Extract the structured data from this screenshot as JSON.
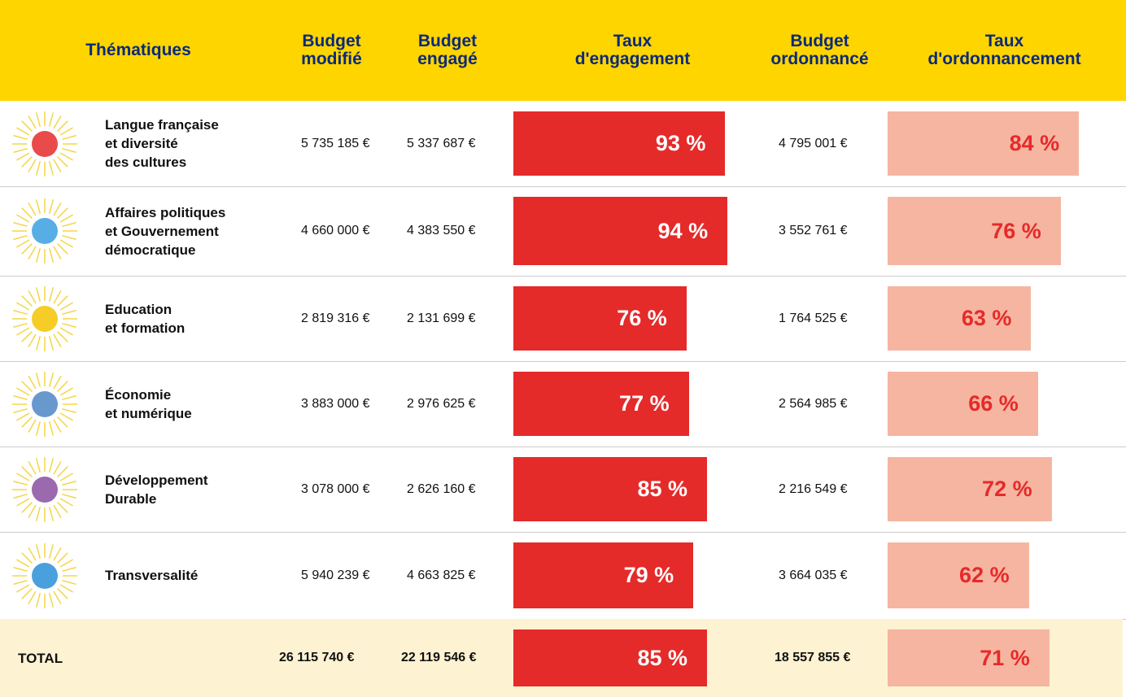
{
  "header": {
    "columns": [
      "Thématiques",
      "Budget\nmodifié",
      "Budget\nengagé",
      "Taux\nd'engagement",
      "Budget\nordonnancé",
      "Taux\nd'ordonnancement"
    ]
  },
  "table": {
    "rows": [
      {
        "theme": "Langue française\net diversité\ndes cultures",
        "budget_modifie": "5 735 185 €",
        "budget_engage": "5 337 687 €",
        "taux_engagement": {
          "value": 93,
          "label": "93 %"
        },
        "budget_ordonnance": "4 795 001 €",
        "taux_ordonnancement": {
          "value": 84,
          "label": "84 %"
        }
      },
      {
        "theme": "Affaires politiques\net Gouvernement\ndémocratique",
        "budget_modifie": "4 660 000 €",
        "budget_engage": "4 383 550 €",
        "taux_engagement": {
          "value": 94,
          "label": "94 %"
        },
        "budget_ordonnance": "3 552 761 €",
        "taux_ordonnancement": {
          "value": 76,
          "label": "76 %"
        }
      },
      {
        "theme": "Education\net formation",
        "budget_modifie": "2 819 316 €",
        "budget_engage": "2 131 699 €",
        "taux_engagement": {
          "value": 76,
          "label": "76 %"
        },
        "budget_ordonnance": "1 764 525 €",
        "taux_ordonnancement": {
          "value": 63,
          "label": "63 %"
        }
      },
      {
        "theme": "Économie\net numérique",
        "budget_modifie": "3 883 000 €",
        "budget_engage": "2 976 625 €",
        "taux_engagement": {
          "value": 77,
          "label": "77 %"
        },
        "budget_ordonnance": "2 564 985 €",
        "taux_ordonnancement": {
          "value": 66,
          "label": "66 %"
        }
      },
      {
        "theme": "Développement\nDurable",
        "budget_modifie": "3 078 000 €",
        "budget_engage": "2 626 160 €",
        "taux_engagement": {
          "value": 85,
          "label": "85 %"
        },
        "budget_ordonnance": "2 216 549 €",
        "taux_ordonnancement": {
          "value": 72,
          "label": "72 %"
        }
      },
      {
        "theme": "Transversalité",
        "budget_modifie": "5 940 239 €",
        "budget_engage": "4 663 825 €",
        "taux_engagement": {
          "value": 79,
          "label": "79 %"
        },
        "budget_ordonnance": "3 664 035 €",
        "taux_ordonnancement": {
          "value": 62,
          "label": "62 %"
        }
      }
    ],
    "total": {
      "theme": "TOTAL",
      "budget_modifie": "26 115 740 €",
      "budget_engage": "22 119 546 €",
      "taux_engagement": {
        "value": 85,
        "label": "85 %"
      },
      "budget_ordonnance": "18 557 855 €",
      "taux_ordonnancement": {
        "value": 71,
        "label": "71 %"
      }
    }
  }
}
